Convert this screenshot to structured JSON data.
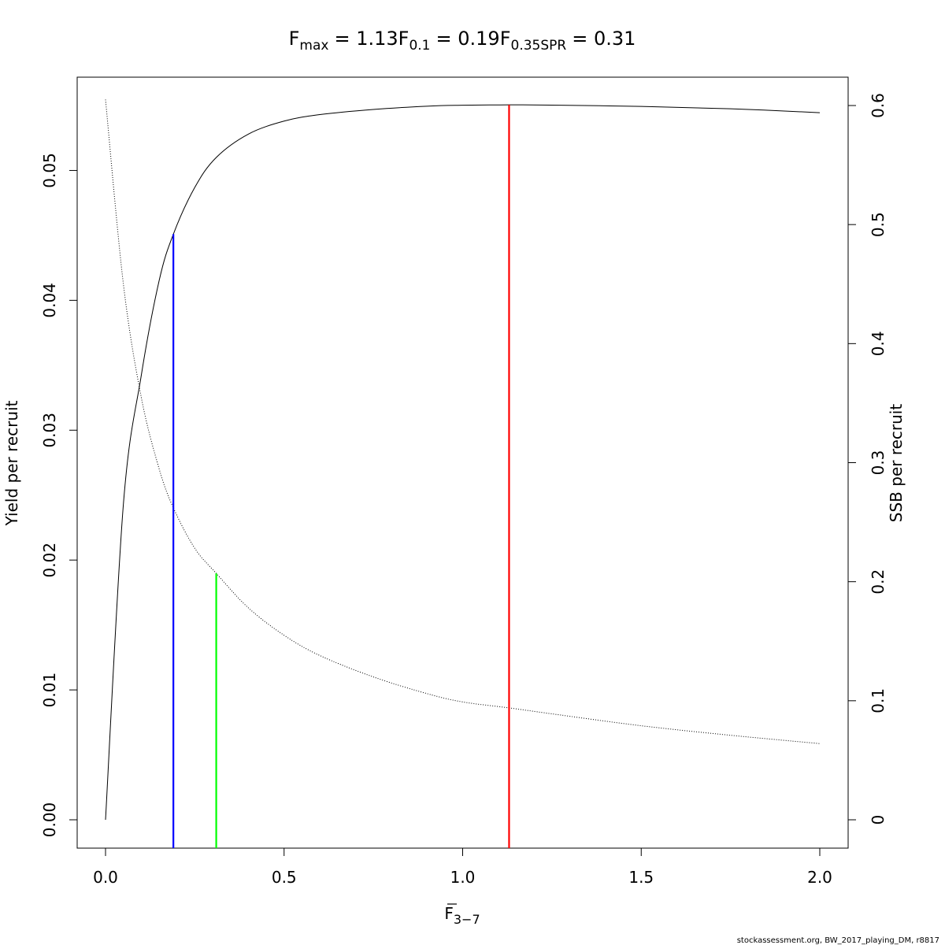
{
  "chart_data": {
    "type": "line",
    "title": {
      "parts": [
        {
          "symbol": "F",
          "subscript": "max",
          "value_text": "= 1.13"
        },
        {
          "symbol": "F",
          "subscript": "0.1",
          "value_text": "= 0.19"
        },
        {
          "symbol": "F",
          "subscript": "0.35SPR",
          "value_text": "= 0.31"
        }
      ]
    },
    "x_axis": {
      "label_symbol": "F",
      "label_subscript": "3−7",
      "label_overline": true,
      "range": [
        0,
        2
      ],
      "ticks": [
        0,
        0.5,
        1,
        1.5,
        2
      ],
      "tick_labels": [
        "0.0",
        "0.5",
        "1.0",
        "1.5",
        "2.0"
      ]
    },
    "y_axis_left": {
      "label": "Yield per recruit",
      "range": [
        0,
        0.055
      ],
      "ticks": [
        0,
        0.01,
        0.02,
        0.03,
        0.04,
        0.05
      ],
      "tick_labels": [
        "0.00",
        "0.01",
        "0.02",
        "0.03",
        "0.04",
        "0.05"
      ]
    },
    "y_axis_right": {
      "label": "SSB per recruit",
      "range": [
        0,
        0.6
      ],
      "ticks": [
        0,
        0.1,
        0.2,
        0.3,
        0.4,
        0.5,
        0.6
      ],
      "tick_labels": [
        "0",
        "0.1",
        "0.2",
        "0.3",
        "0.4",
        "0.5",
        "0.6"
      ]
    },
    "series": [
      {
        "axis": "left",
        "style": "solid",
        "color": "#000000",
        "x": [
          0,
          0.05,
          0.1,
          0.15,
          0.19,
          0.25,
          0.31,
          0.4,
          0.5,
          0.6,
          0.75,
          0.9,
          1.0,
          1.13,
          1.25,
          1.5,
          1.75,
          2.0
        ],
        "values": [
          0,
          0.0243,
          0.0342,
          0.0415,
          0.0451,
          0.0487,
          0.051,
          0.0528,
          0.0538,
          0.0543,
          0.0547,
          0.05495,
          0.05502,
          0.05505,
          0.05503,
          0.05493,
          0.05475,
          0.05445
        ]
      },
      {
        "axis": "right",
        "style": "dotted",
        "color": "#000000",
        "x": [
          0,
          0.05,
          0.1,
          0.15,
          0.19,
          0.25,
          0.31,
          0.4,
          0.5,
          0.6,
          0.75,
          0.9,
          1.0,
          1.13,
          1.25,
          1.5,
          1.75,
          2.0
        ],
        "values": [
          0.605,
          0.45,
          0.355,
          0.295,
          0.262,
          0.228,
          0.207,
          0.178,
          0.155,
          0.138,
          0.12,
          0.106,
          0.099,
          0.094,
          0.089,
          0.079,
          0.071,
          0.064
        ]
      }
    ],
    "reference_lines": [
      {
        "x": 0.19,
        "color": "#0000ff",
        "y_top": 0.0451,
        "axis": "left"
      },
      {
        "x": 0.31,
        "color": "#00ff00",
        "y_top": 0.207,
        "axis": "right"
      },
      {
        "x": 1.13,
        "color": "#ff0000",
        "y_top": 0.05505,
        "axis": "left"
      }
    ],
    "grid": false,
    "legend": "none"
  },
  "footer": {
    "credit": "stockassessment.org, BW_2017_playing_DM, r8817"
  }
}
